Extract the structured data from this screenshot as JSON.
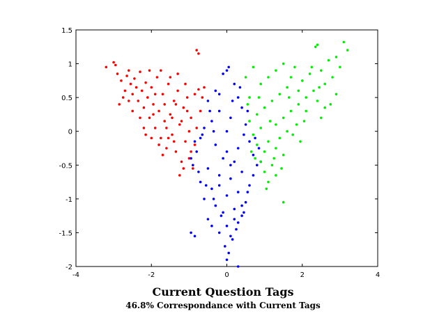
{
  "chart_data": {
    "type": "scatter",
    "title": "Current Question Tags",
    "subtitle": "46.8% Correspondance with Current Tags",
    "xlabel": "",
    "ylabel": "",
    "xlim": [
      -4,
      4
    ],
    "ylim": [
      -2,
      1.5
    ],
    "x_ticks": [
      -4,
      -2,
      0,
      2,
      4
    ],
    "y_ticks": [
      -2,
      -1.5,
      -1,
      -0.5,
      0,
      0.5,
      1,
      1.5
    ],
    "x_tick_labels": [
      "-4",
      "-2",
      "0",
      "2",
      "4"
    ],
    "y_tick_labels": [
      "-2",
      "-1.5",
      "-1",
      "-0.5",
      "0",
      "0.5",
      "1",
      "1.5"
    ],
    "grid": false,
    "series": [
      {
        "color": "#ff0000",
        "points": [
          [
            -3.2,
            0.95
          ],
          [
            -3.0,
            1.02
          ],
          [
            -2.95,
            0.98
          ],
          [
            -2.9,
            0.85
          ],
          [
            -2.8,
            0.75
          ],
          [
            -2.7,
            0.6
          ],
          [
            -2.65,
            0.82
          ],
          [
            -2.6,
            0.9
          ],
          [
            -2.55,
            0.7
          ],
          [
            -2.5,
            0.55
          ],
          [
            -2.45,
            0.78
          ],
          [
            -2.4,
            0.65
          ],
          [
            -2.35,
            0.45
          ],
          [
            -2.3,
            0.88
          ],
          [
            -2.25,
            0.6
          ],
          [
            -2.2,
            0.35
          ],
          [
            -2.15,
            0.72
          ],
          [
            -2.1,
            0.5
          ],
          [
            -2.05,
            0.2
          ],
          [
            -2.0,
            0.65
          ],
          [
            -1.95,
            0.4
          ],
          [
            -1.9,
            0.05
          ],
          [
            -1.85,
            0.8
          ],
          [
            -1.8,
            0.3
          ],
          [
            -1.75,
            -0.1
          ],
          [
            -1.7,
            0.55
          ],
          [
            -1.65,
            0.15
          ],
          [
            -1.6,
            -0.25
          ],
          [
            -1.55,
            0.7
          ],
          [
            -1.5,
            0.25
          ],
          [
            -1.45,
            -0.05
          ],
          [
            -1.4,
            0.45
          ],
          [
            -1.35,
            -0.3
          ],
          [
            -1.3,
            0.6
          ],
          [
            -1.25,
            0.1
          ],
          [
            -1.2,
            -0.45
          ],
          [
            -1.15,
            0.35
          ],
          [
            -1.1,
            -0.15
          ],
          [
            -1.05,
            0.5
          ],
          [
            -1.0,
            -0.4
          ],
          [
            -0.95,
            0.2
          ],
          [
            -0.9,
            -0.55
          ],
          [
            -0.85,
            0.55
          ],
          [
            -0.8,
            0.05
          ],
          [
            -0.75,
            0.62
          ],
          [
            -0.7,
            0.3
          ],
          [
            -0.65,
            0.5
          ],
          [
            -0.6,
            0.65
          ],
          [
            -0.8,
            1.2
          ],
          [
            -0.75,
            1.15
          ],
          [
            -2.85,
            0.4
          ],
          [
            -2.5,
            0.3
          ],
          [
            -2.2,
            0.05
          ],
          [
            -2.0,
            -0.1
          ],
          [
            -1.8,
            -0.2
          ],
          [
            -1.6,
            0.05
          ],
          [
            -1.4,
            -0.15
          ],
          [
            -1.2,
            0.15
          ],
          [
            -1.0,
            0.0
          ],
          [
            -0.95,
            -0.3
          ],
          [
            -1.25,
            -0.65
          ],
          [
            -1.15,
            -0.55
          ],
          [
            -1.3,
            0.85
          ],
          [
            -1.5,
            0.8
          ],
          [
            -1.75,
            0.9
          ],
          [
            -2.05,
            0.9
          ],
          [
            -1.65,
            0.4
          ],
          [
            -1.9,
            0.55
          ],
          [
            -2.3,
            0.2
          ],
          [
            -2.6,
            0.45
          ],
          [
            -2.75,
            0.5
          ],
          [
            -1.45,
            0.2
          ],
          [
            -1.55,
            -0.1
          ],
          [
            -1.05,
            0.3
          ],
          [
            -0.85,
            -0.2
          ],
          [
            -1.1,
            0.7
          ],
          [
            -1.35,
            0.4
          ],
          [
            -2.15,
            -0.05
          ],
          [
            -1.7,
            -0.35
          ],
          [
            -1.95,
            0.25
          ]
        ]
      },
      {
        "color": "#0000ff",
        "points": [
          [
            0.05,
            0.95
          ],
          [
            0.0,
            0.9
          ],
          [
            -0.1,
            0.85
          ],
          [
            0.2,
            0.7
          ],
          [
            -0.3,
            0.6
          ],
          [
            0.3,
            0.5
          ],
          [
            -0.5,
            0.45
          ],
          [
            0.4,
            0.35
          ],
          [
            -0.2,
            0.3
          ],
          [
            0.1,
            0.2
          ],
          [
            -0.4,
            0.15
          ],
          [
            0.5,
            0.1
          ],
          [
            -0.6,
            0.05
          ],
          [
            0.0,
            0.0
          ],
          [
            -0.7,
            -0.1
          ],
          [
            0.6,
            -0.15
          ],
          [
            -0.3,
            -0.2
          ],
          [
            0.3,
            -0.25
          ],
          [
            -0.8,
            -0.3
          ],
          [
            0.7,
            -0.35
          ],
          [
            -0.1,
            -0.4
          ],
          [
            0.2,
            -0.45
          ],
          [
            -0.9,
            -0.5
          ],
          [
            0.8,
            -0.5
          ],
          [
            -0.5,
            -0.55
          ],
          [
            0.4,
            -0.6
          ],
          [
            -0.2,
            -0.65
          ],
          [
            0.1,
            -0.7
          ],
          [
            -0.7,
            -0.75
          ],
          [
            0.6,
            -0.8
          ],
          [
            -0.4,
            -0.85
          ],
          [
            0.3,
            -0.9
          ],
          [
            0.0,
            -0.95
          ],
          [
            -0.6,
            -1.0
          ],
          [
            0.5,
            -1.05
          ],
          [
            -0.3,
            -1.1
          ],
          [
            0.2,
            -1.15
          ],
          [
            -0.1,
            -1.2
          ],
          [
            0.4,
            -1.25
          ],
          [
            -0.5,
            -1.3
          ],
          [
            0.3,
            -1.35
          ],
          [
            0.0,
            -1.4
          ],
          [
            0.25,
            -1.45
          ],
          [
            -0.2,
            -1.5
          ],
          [
            0.1,
            -1.55
          ],
          [
            0.15,
            -1.6
          ],
          [
            -0.05,
            -1.7
          ],
          [
            0.05,
            -1.8
          ],
          [
            0.0,
            -1.9
          ],
          [
            0.3,
            -2.0
          ],
          [
            -0.95,
            -1.5
          ],
          [
            -0.85,
            -1.55
          ],
          [
            -0.2,
            0.55
          ],
          [
            0.35,
            0.65
          ],
          [
            -0.45,
            0.3
          ],
          [
            0.55,
            0.3
          ],
          [
            -0.65,
            -0.05
          ],
          [
            0.75,
            -0.1
          ],
          [
            -0.85,
            -0.15
          ],
          [
            0.85,
            -0.25
          ],
          [
            -0.95,
            -0.4
          ],
          [
            0.9,
            -0.45
          ],
          [
            -0.75,
            -0.6
          ],
          [
            0.7,
            -0.65
          ],
          [
            -0.55,
            -0.8
          ],
          [
            0.55,
            -0.9
          ],
          [
            -0.35,
            -1.0
          ],
          [
            0.4,
            -1.1
          ],
          [
            -0.15,
            -1.25
          ],
          [
            0.2,
            -1.3
          ],
          [
            0.45,
            -1.2
          ],
          [
            -0.4,
            -1.4
          ],
          [
            0.0,
            -0.3
          ],
          [
            0.1,
            -0.5
          ],
          [
            -0.2,
            -0.8
          ],
          [
            0.15,
            0.45
          ],
          [
            -0.35,
            0.0
          ],
          [
            0.45,
            -0.05
          ]
        ]
      },
      {
        "color": "#00ee00",
        "points": [
          [
            3.1,
            1.32
          ],
          [
            2.4,
            1.28
          ],
          [
            2.35,
            1.25
          ],
          [
            3.2,
            1.2
          ],
          [
            2.9,
            1.1
          ],
          [
            2.7,
            1.05
          ],
          [
            3.0,
            0.95
          ],
          [
            2.5,
            0.9
          ],
          [
            2.2,
            0.85
          ],
          [
            2.8,
            0.8
          ],
          [
            2.6,
            0.7
          ],
          [
            2.0,
            0.75
          ],
          [
            1.8,
            0.95
          ],
          [
            1.6,
            0.65
          ],
          [
            2.3,
            0.6
          ],
          [
            1.4,
            0.55
          ],
          [
            2.1,
            0.5
          ],
          [
            1.2,
            0.45
          ],
          [
            1.9,
            0.4
          ],
          [
            1.0,
            0.35
          ],
          [
            1.7,
            0.3
          ],
          [
            0.8,
            0.25
          ],
          [
            1.5,
            0.2
          ],
          [
            0.6,
            0.15
          ],
          [
            1.3,
            0.1
          ],
          [
            0.9,
            0.05
          ],
          [
            1.6,
            0.0
          ],
          [
            0.7,
            -0.05
          ],
          [
            1.4,
            -0.1
          ],
          [
            1.1,
            -0.15
          ],
          [
            0.8,
            -0.2
          ],
          [
            1.3,
            -0.25
          ],
          [
            1.0,
            -0.3
          ],
          [
            1.5,
            -0.35
          ],
          [
            0.9,
            -0.45
          ],
          [
            1.2,
            -0.5
          ],
          [
            1.0,
            -0.6
          ],
          [
            1.3,
            -0.65
          ],
          [
            1.1,
            -0.75
          ],
          [
            1.5,
            -1.05
          ],
          [
            0.7,
            0.95
          ],
          [
            0.5,
            0.8
          ],
          [
            0.9,
            0.7
          ],
          [
            0.6,
            0.5
          ],
          [
            1.1,
            0.8
          ],
          [
            1.3,
            0.9
          ],
          [
            1.5,
            1.0
          ],
          [
            1.7,
            0.8
          ],
          [
            1.9,
            0.6
          ],
          [
            2.1,
            0.3
          ],
          [
            2.4,
            0.45
          ],
          [
            2.6,
            0.35
          ],
          [
            2.9,
            0.55
          ],
          [
            2.05,
            0.15
          ],
          [
            1.75,
            -0.05
          ],
          [
            1.85,
            0.1
          ],
          [
            1.25,
            -0.4
          ],
          [
            1.45,
            -0.55
          ],
          [
            1.05,
            -0.85
          ],
          [
            0.75,
            -0.4
          ],
          [
            0.55,
            0.4
          ],
          [
            0.65,
            -0.3
          ],
          [
            2.5,
            0.2
          ],
          [
            2.75,
            0.4
          ],
          [
            1.95,
            -0.15
          ],
          [
            1.65,
            0.5
          ],
          [
            2.25,
            0.95
          ],
          [
            2.45,
            0.65
          ],
          [
            0.85,
            0.5
          ],
          [
            1.15,
            0.15
          ]
        ]
      }
    ]
  }
}
